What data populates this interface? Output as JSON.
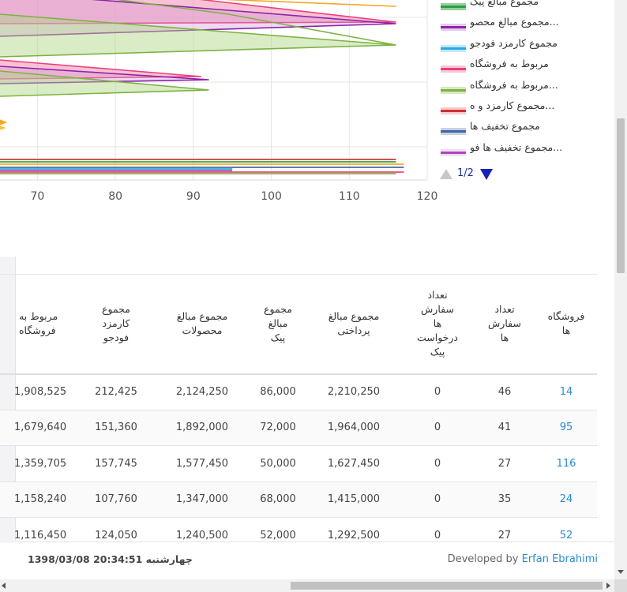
{
  "chart_data": {
    "type": "area",
    "x_ticks": [
      "70",
      "80",
      "90",
      "100",
      "110",
      "120"
    ],
    "x_range": [
      65.2,
      120
    ],
    "grid": true,
    "legend_position": "right",
    "series": [
      {
        "name": "مجموع مبالغ پیک",
        "color": "#2e9e3e",
        "fill": "#2e9e3e"
      },
      {
        "name": "...مجموع مبالغ محصو",
        "color": "#8e24aa",
        "fill": "#ce93d8"
      },
      {
        "name": "مجموع کارمزد فودجو",
        "color": "#29a9e0",
        "fill": "#81d4fa"
      },
      {
        "name": "مربوط به فروشگاه",
        "color": "#ec407a",
        "fill": "#f48fb1"
      },
      {
        "name": "...مربوط به فروشگاه",
        "color": "#7cb342",
        "fill": "#aed581"
      },
      {
        "name": "...مجموع کارمزد و ه",
        "color": "#d32f2f",
        "fill": "#ef9a9a"
      },
      {
        "name": "مجموع تخفیف ها",
        "color": "#3f66a8",
        "fill": "#90a4c8"
      },
      {
        "name": "...مجموع تخفیف ها فو",
        "color": "#ab47bc",
        "fill": "#e1bee7"
      }
    ],
    "visible_tips": [
      {
        "series": "...مجموع مبالغ محصو",
        "x": 116
      },
      {
        "series": "...مربوط به فروشگاه",
        "x": 116
      },
      {
        "series": "مربوط به فروشگاه",
        "x": 116
      },
      {
        "series": "...مجموع مبالغ محصو",
        "x": 92
      },
      {
        "series": "مربوط به فروشگاه",
        "x": 91
      },
      {
        "series": "...مربوط به فروشگاه",
        "x": 92
      },
      {
        "series": "...مجموع کارمزد و ه",
        "x": 116
      },
      {
        "series": "مجموع تخفیف ها",
        "x": 117
      },
      {
        "series": "...مجموع تخفیف ها فو",
        "x": 95
      }
    ]
  },
  "legend": {
    "pager_text": "1/2"
  },
  "table": {
    "headers": [
      [
        "فروشگاه",
        "ها"
      ],
      [
        "تعداد",
        "سفارش",
        "ها"
      ],
      [
        "تعداد",
        "سفارش",
        "ها",
        "درخواست",
        "پیک"
      ],
      [
        "مجموع مبالغ",
        "پرداختی"
      ],
      [
        "مجموع",
        "مبالغ",
        "پیک"
      ],
      [
        "مجموع مبالغ",
        "محصولات"
      ],
      [
        "مجموع",
        "کارمزد",
        "فودجو"
      ],
      [
        "مربوط به",
        "فروشگاه"
      ]
    ],
    "rows": [
      {
        "store": "14",
        "orders": "46",
        "courier_requests": "0",
        "paid": "2,210,250",
        "courier": "86,000",
        "products": "2,124,250",
        "fee": "212,425",
        "store_share": "1,908,525"
      },
      {
        "store": "95",
        "orders": "41",
        "courier_requests": "0",
        "paid": "1,964,000",
        "courier": "72,000",
        "products": "1,892,000",
        "fee": "151,360",
        "store_share": "1,679,640"
      },
      {
        "store": "116",
        "orders": "27",
        "courier_requests": "0",
        "paid": "1,627,450",
        "courier": "50,000",
        "products": "1,577,450",
        "fee": "157,745",
        "store_share": "1,359,705"
      },
      {
        "store": "24",
        "orders": "35",
        "courier_requests": "0",
        "paid": "1,415,000",
        "courier": "68,000",
        "products": "1,347,000",
        "fee": "107,760",
        "store_share": "1,158,240"
      },
      {
        "store": "52",
        "orders": "27",
        "courier_requests": "0",
        "paid": "1,292,500",
        "courier": "52,000",
        "products": "1,240,500",
        "fee": "124,050",
        "store_share": "1,116,450"
      }
    ]
  },
  "footer": {
    "datetime": "1398/03/08 چهارشنبه 20:34:51",
    "credit_prefix": "Developed by",
    "credit_author": "Erfan Ebrahimi"
  }
}
